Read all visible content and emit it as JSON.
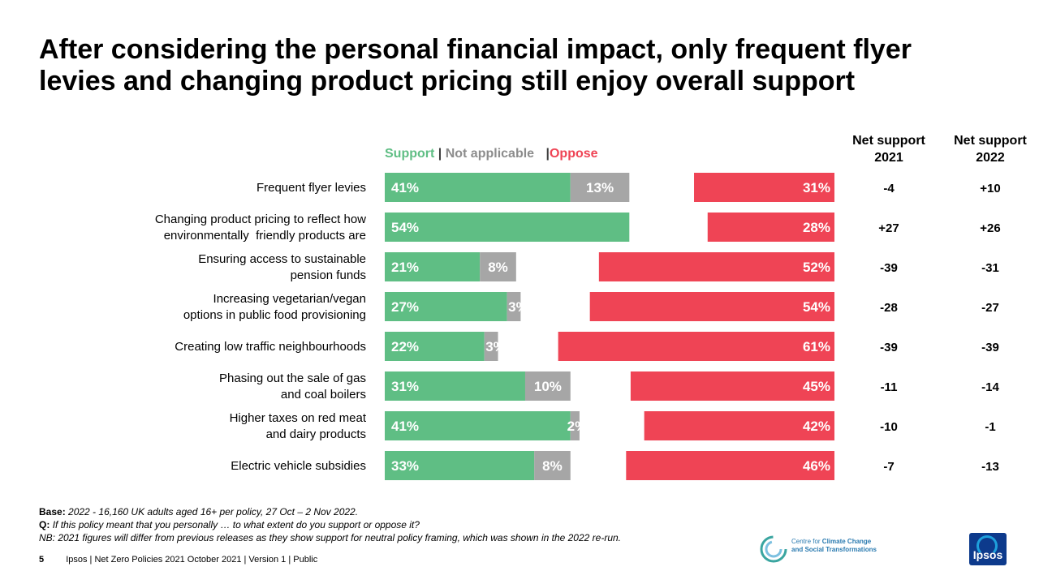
{
  "title": "After considering the personal financial impact, only frequent flyer levies and changing product pricing still enjoy overall support",
  "legend": {
    "support": "Support",
    "sep1": " | ",
    "not_applicable": "Not applicable",
    "sep2": " |",
    "oppose": "Oppose"
  },
  "columns": {
    "net2021": [
      "Net support",
      "2021"
    ],
    "net2022": [
      "Net support",
      "2022"
    ]
  },
  "colors": {
    "support": "#5FBE84",
    "not_applicable": "#A6A6A6",
    "oppose": "#EF4455"
  },
  "chart_data": {
    "type": "bar",
    "title": "",
    "categories": [
      [
        "Frequent flyer levies"
      ],
      [
        "Changing product pricing to reflect how",
        "environmentally  friendly products are"
      ],
      [
        "Ensuring access to sustainable",
        "pension funds"
      ],
      [
        "Increasing vegetarian/vegan",
        "options in public food provisioning"
      ],
      [
        "Creating low traffic neighbourhoods"
      ],
      [
        "Phasing out the sale of gas",
        "and coal boilers"
      ],
      [
        "Higher taxes on red meat",
        "and dairy products"
      ],
      [
        "Electric vehicle subsidies"
      ]
    ],
    "series": [
      {
        "name": "Support",
        "values": [
          41,
          54,
          21,
          27,
          22,
          31,
          41,
          33
        ],
        "labels": [
          "41%",
          "54%",
          "21%",
          "27%",
          "22%",
          "31%",
          "41%",
          "33%"
        ]
      },
      {
        "name": "Not applicable",
        "values": [
          13,
          0,
          8,
          3,
          3,
          10,
          2,
          8
        ],
        "labels": [
          "13%",
          "",
          "8%",
          "3%",
          "3%",
          "10%",
          "2%",
          "8%"
        ]
      },
      {
        "name": "Oppose",
        "values": [
          31,
          28,
          52,
          54,
          61,
          45,
          42,
          46
        ],
        "labels": [
          "31%",
          "28%",
          "52%",
          "54%",
          "61%",
          "45%",
          "42%",
          "46%"
        ]
      }
    ],
    "net_support_2021": [
      "-4",
      "+27",
      "-39",
      "-28",
      "-39",
      "-11",
      "-10",
      "-7"
    ],
    "net_support_2022": [
      "+10",
      "+26",
      "-31",
      "-27",
      "-39",
      "-14",
      "-1",
      "-13"
    ],
    "xlim": [
      0,
      100
    ]
  },
  "footnotes": {
    "base_label": "Base:",
    "base_text": "2022 - 16,160 UK adults aged 16+ per policy, 27 Oct – 2 Nov 2022.",
    "q_label": "Q:",
    "q_text": "If this policy meant that you personally  … to what extent do you support or oppose it?",
    "nb_text": "NB: 2021 figures will differ from previous releases as they show support for neutral policy framing, which was shown in the 2022 re-run."
  },
  "footer": {
    "page": "5",
    "text": "Ipsos | Net Zero Policies 2021  October 2021 | Version 1 | Public"
  },
  "logos": {
    "cctst_line1_a": "Centre for ",
    "cctst_line1_b": "Climate Change",
    "cctst_line2": "and Social Transformations",
    "ipsos": "Ipsos"
  }
}
